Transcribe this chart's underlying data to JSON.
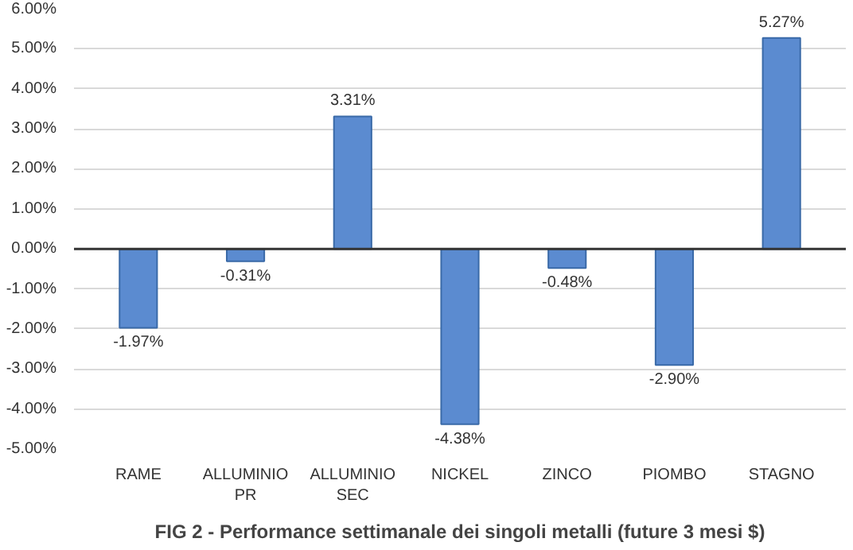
{
  "chart_data": {
    "type": "bar",
    "title": "FIG 2 - Performance settimanale dei singoli metalli (future 3 mesi $)",
    "categories": [
      "RAME",
      "ALLUMINIO PR",
      "ALLUMINIO SEC",
      "NICKEL",
      "ZINCO",
      "PIOMBO",
      "STAGNO"
    ],
    "values": [
      -1.97,
      -0.31,
      3.31,
      -4.38,
      -0.48,
      -2.9,
      5.27
    ],
    "value_labels": [
      "-1.97%",
      "-0.31%",
      "3.31%",
      "-4.38%",
      "-0.48%",
      "-2.90%",
      "5.27%"
    ],
    "color": "#5b8bd0",
    "ylim": [
      -5,
      6
    ],
    "yticks": [
      {
        "value": -5,
        "label": "-5.00%"
      },
      {
        "value": -4,
        "label": "-4.00%"
      },
      {
        "value": -3,
        "label": "-3.00%"
      },
      {
        "value": -2,
        "label": "-2.00%"
      },
      {
        "value": -1,
        "label": "-1.00%"
      },
      {
        "value": 0,
        "label": "0.00%"
      },
      {
        "value": 1,
        "label": "1.00%"
      },
      {
        "value": 2,
        "label": "2.00%"
      },
      {
        "value": 3,
        "label": "3.00%"
      },
      {
        "value": 4,
        "label": "4.00%"
      },
      {
        "value": 5,
        "label": "5.00%"
      },
      {
        "value": 6,
        "label": "6.00%"
      }
    ],
    "grid": "y"
  }
}
